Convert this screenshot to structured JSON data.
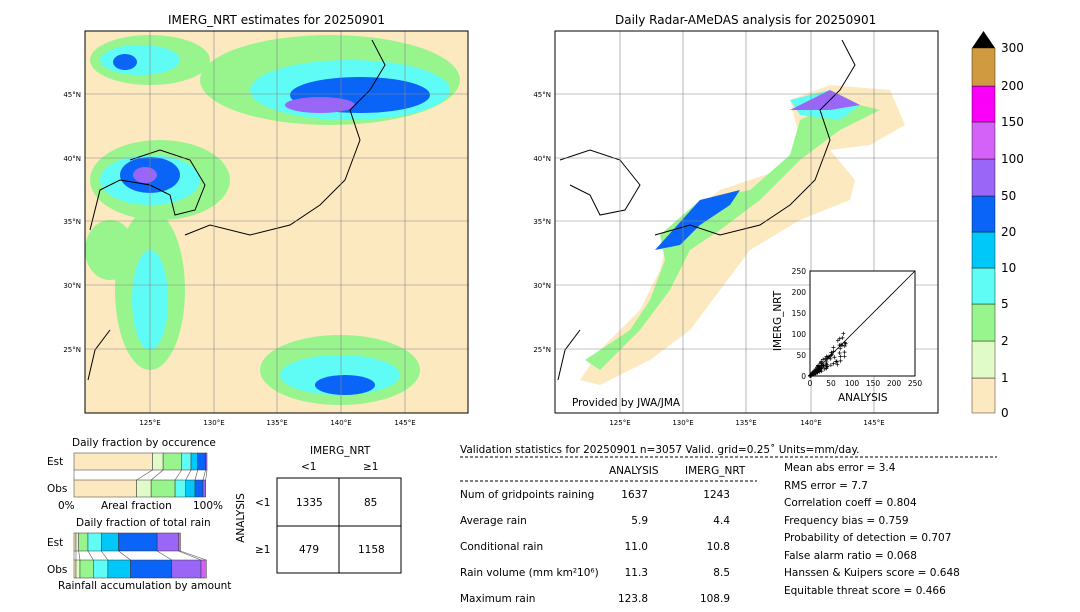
{
  "left_map": {
    "title": "IMERG_NRT estimates for 20250901",
    "lon_ticks": [
      "125°E",
      "130°E",
      "135°E",
      "140°E",
      "145°E"
    ],
    "lat_ticks": [
      "45°N",
      "40°N",
      "35°N",
      "30°N",
      "25°N"
    ]
  },
  "right_map": {
    "title": "Daily Radar-AMeDAS analysis for 20250901",
    "lon_ticks": [
      "125°E",
      "130°E",
      "135°E",
      "140°E",
      "145°E"
    ],
    "lat_ticks": [
      "45°N",
      "40°N",
      "35°N",
      "30°N",
      "25°N"
    ],
    "credit": "Provided by JWA/JMA"
  },
  "colorbar": {
    "labels": [
      "0",
      "1",
      "2",
      "5",
      "10",
      "20",
      "50",
      "100",
      "150",
      "200",
      "300"
    ],
    "colors": [
      "#fde9c0",
      "#e0fbc8",
      "#98f58e",
      "#5ffbf5",
      "#00c8f8",
      "#0a64f8",
      "#9966f8",
      "#d562f8",
      "#fb00f8",
      "#d09a40"
    ],
    "extend_color": "#000000"
  },
  "scatter": {
    "xlabel": "ANALYSIS",
    "ylabel": "IMERG_NRT",
    "ticks": [
      "0",
      "50",
      "100",
      "150",
      "200",
      "250"
    ]
  },
  "occurrence": {
    "title": "Daily fraction by occurence",
    "est_label": "Est",
    "obs_label": "Obs",
    "xlabel": "Areal fraction",
    "left": "0%",
    "right": "100%",
    "est": [
      0.59,
      0.08,
      0.14,
      0.07,
      0.05,
      0.06,
      0.01
    ],
    "obs": [
      0.47,
      0.11,
      0.18,
      0.08,
      0.07,
      0.06,
      0.02
    ]
  },
  "total_rain": {
    "title": "Daily fraction of total rain",
    "est_label": "Est",
    "obs_label": "Obs",
    "xlabel": "Rainfall accumulation by amount",
    "est": [
      0.015,
      0.02,
      0.07,
      0.1,
      0.13,
      0.29,
      0.16,
      0.015
    ],
    "obs": [
      0.015,
      0.03,
      0.1,
      0.11,
      0.17,
      0.31,
      0.22,
      0.04
    ]
  },
  "contingency": {
    "col_header": "IMERG_NRT",
    "row_header": "ANALYSIS",
    "col_labels": [
      "<1",
      "≥1"
    ],
    "row_labels": [
      "<1",
      "≥1"
    ],
    "cells": [
      [
        "1335",
        "85"
      ],
      [
        "479",
        "1158"
      ]
    ]
  },
  "stats": {
    "header": "Validation statistics for 20250901  n=3057 Valid. grid=0.25˚ Units=mm/day.",
    "col1": "ANALYSIS",
    "col2": "IMERG_NRT",
    "rows": [
      {
        "label": "Num of gridpoints raining",
        "a": "1637",
        "b": "1243"
      },
      {
        "label": "Average rain",
        "a": "5.9",
        "b": "4.4"
      },
      {
        "label": "Conditional rain",
        "a": "11.0",
        "b": "10.8"
      },
      {
        "label": "Rain volume (mm km²10⁶)",
        "a": "11.3",
        "b": "8.5"
      },
      {
        "label": "Maximum rain",
        "a": "123.8",
        "b": "108.9"
      }
    ],
    "scores": [
      "Mean abs error =    3.4",
      "RMS error =    7.7",
      "Correlation coeff =  0.804",
      "Frequency bias =  0.759",
      "Probability of detection =  0.707",
      "False alarm ratio =  0.068",
      "Hanssen & Kuipers score =  0.648",
      "Equitable threat score =  0.466"
    ]
  }
}
